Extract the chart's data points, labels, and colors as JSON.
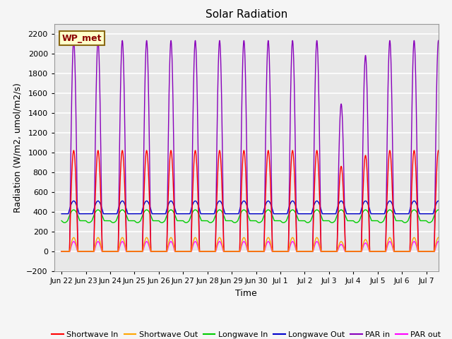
{
  "title": "Solar Radiation",
  "ylabel": "Radiation (W/m2, umol/m2/s)",
  "xlabel": "Time",
  "ylim": [
    -200,
    2300
  ],
  "yticks": [
    -200,
    0,
    200,
    400,
    600,
    800,
    1000,
    1200,
    1400,
    1600,
    1800,
    2000,
    2200
  ],
  "plot_bg": "#e8e8e8",
  "fig_bg": "#f5f5f5",
  "grid_color": "#ffffff",
  "legend_label": "WP_met",
  "series": {
    "shortwave_in": {
      "label": "Shortwave In",
      "color": "#ff0000"
    },
    "shortwave_out": {
      "label": "Shortwave Out",
      "color": "#ffa500"
    },
    "longwave_in": {
      "label": "Longwave In",
      "color": "#00cc00"
    },
    "longwave_out": {
      "label": "Longwave Out",
      "color": "#0000cc"
    },
    "par_in": {
      "label": "PAR in",
      "color": "#8800bb"
    },
    "par_out": {
      "label": "PAR out",
      "color": "#ff00ff"
    }
  },
  "x_tick_labels": [
    "Jun 22",
    "Jun 23",
    "Jun 24",
    "Jun 25",
    "Jun 26",
    "Jun 27",
    "Jun 28",
    "Jun 29",
    "Jun 30",
    "Jul 1",
    "Jul 2",
    "Jul 3",
    "Jul 4",
    "Jul 5",
    "Jul 6",
    "Jul 7"
  ]
}
